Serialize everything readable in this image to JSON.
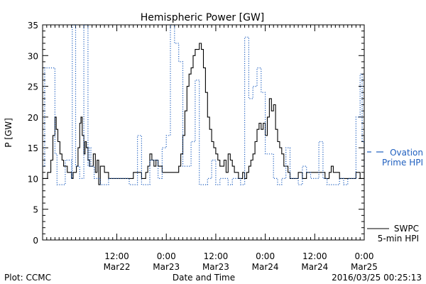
{
  "chart_data": {
    "type": "line",
    "title": "Hemispheric Power [GW]",
    "xlabel": "Date and Time",
    "ylabel": "P [GW]",
    "ylim": [
      0,
      35
    ],
    "xlim": [
      0,
      78
    ],
    "y_ticks": [
      0,
      5,
      10,
      15,
      20,
      25,
      30,
      35
    ],
    "x_ticks": [
      {
        "hours": 18,
        "time": "12:00",
        "date": "Mar22"
      },
      {
        "hours": 30,
        "time": "0:00",
        "date": "Mar23"
      },
      {
        "hours": 42,
        "time": "12:00",
        "date": "Mar23"
      },
      {
        "hours": 54,
        "time": "0:00",
        "date": "Mar24"
      },
      {
        "hours": 66,
        "time": "12:00",
        "date": "Mar24"
      },
      {
        "hours": 78,
        "time": "0:00",
        "date": "Mar25"
      }
    ],
    "series": [
      {
        "name": "SWPC 5-min HPI",
        "legend_lines": [
          "SWPC",
          "5-min HPI"
        ],
        "color": "#000000",
        "style": "solid",
        "x": [
          0,
          0.6,
          1.2,
          2.0,
          2.5,
          3.0,
          3.3,
          3.7,
          4.2,
          4.7,
          5.1,
          5.6,
          6.0,
          6.5,
          7.0,
          7.4,
          7.8,
          8.2,
          8.6,
          9.0,
          9.3,
          9.6,
          10.0,
          10.3,
          10.6,
          11.0,
          11.4,
          11.8,
          12.3,
          12.8,
          13.2,
          13.6,
          14.0,
          15.0,
          16.0,
          17.0,
          18.0,
          19.0,
          20.0,
          21.0,
          22.0,
          23.0,
          24.0,
          25.0,
          25.5,
          26.0,
          26.5,
          27.0,
          27.5,
          28.0,
          28.5,
          29.0,
          30.0,
          31.0,
          32.0,
          33.0,
          33.5,
          34.0,
          34.5,
          35.0,
          35.5,
          36.0,
          36.5,
          37.0,
          37.5,
          38.0,
          38.5,
          39.0,
          39.5,
          40.0,
          40.5,
          41.0,
          41.5,
          42.0,
          42.5,
          43.0,
          43.5,
          44.0,
          44.5,
          45.0,
          45.5,
          46.0,
          46.5,
          47.0,
          47.5,
          48.0,
          48.5,
          49.0,
          49.5,
          50.0,
          50.5,
          51.0,
          51.5,
          52.0,
          52.5,
          53.0,
          53.5,
          54.0,
          54.5,
          55.0,
          55.5,
          56.0,
          56.5,
          57.0,
          57.5,
          58.0,
          58.5,
          59.0,
          59.5,
          60.0,
          61.0,
          62.0,
          63.0,
          64.0,
          65.0,
          66.0,
          67.0,
          68.0,
          68.5,
          69.0,
          69.5,
          70.0,
          70.5,
          71.0,
          72.0,
          73.0,
          74.0,
          75.0,
          76.0,
          76.5,
          77.0,
          77.5,
          78.0
        ],
        "y": [
          10,
          10,
          11,
          13,
          17,
          20,
          18,
          16,
          14,
          13,
          12,
          12,
          11,
          11,
          10,
          11,
          11,
          12,
          15,
          19,
          20,
          17,
          14,
          16,
          15,
          13,
          12,
          12,
          14,
          11,
          13,
          9,
          12,
          11,
          10,
          10,
          10,
          10,
          10,
          10,
          11,
          11,
          10,
          11,
          12,
          14,
          13,
          12,
          13,
          12,
          12,
          11,
          11,
          11,
          11,
          12,
          14,
          17,
          21,
          25,
          27,
          28,
          30,
          31,
          31,
          32,
          31,
          28,
          24,
          20,
          18,
          16,
          15,
          14,
          13,
          12,
          12,
          13,
          11,
          14,
          13,
          12,
          11,
          11,
          10,
          10,
          11,
          10,
          11,
          12,
          13,
          14,
          16,
          18,
          19,
          18,
          19,
          17,
          20,
          23,
          21,
          22,
          18,
          16,
          15,
          14,
          12,
          12,
          11,
          10,
          10,
          11,
          10,
          11,
          11,
          11,
          11,
          11,
          10,
          10,
          11,
          12,
          11,
          11,
          10,
          10,
          10,
          10,
          11,
          11,
          10,
          10,
          17
        ]
      },
      {
        "name": "Ovation Prime HPI",
        "legend_lines": [
          "Ovation",
          "Prime HPI"
        ],
        "color": "#1f5fbf",
        "style": "dotted",
        "x": [
          0,
          0.5,
          1.0,
          3.0,
          3.5,
          4.0,
          5.5,
          6.0,
          7.0,
          7.2,
          7.4,
          8.0,
          8.5,
          9.0,
          10.0,
          10.5,
          11.0,
          11.3,
          11.7,
          12.0,
          12.5,
          13.0,
          14.0,
          16.0,
          18.0,
          20.0,
          21.0,
          22.0,
          23.0,
          24.0,
          25.0,
          26.0,
          27.0,
          28.0,
          29.0,
          30.0,
          31.0,
          32.0,
          33.0,
          34.0,
          35.0,
          36.0,
          37.0,
          38.0,
          39.0,
          40.0,
          41.0,
          42.0,
          43.0,
          44.0,
          45.0,
          46.0,
          47.0,
          48.0,
          49.0,
          50.0,
          51.0,
          52.0,
          53.0,
          54.0,
          55.0,
          56.0,
          57.0,
          58.0,
          59.0,
          60.0,
          61.0,
          62.0,
          63.0,
          64.0,
          65.0,
          66.0,
          67.0,
          68.0,
          69.0,
          70.0,
          71.0,
          72.0,
          73.0,
          74.0,
          75.0,
          76.0,
          77.0,
          77.5,
          78.0
        ],
        "y": [
          12,
          28,
          28,
          14,
          9,
          9,
          13,
          13,
          10,
          36,
          36,
          12,
          12,
          10,
          36,
          36,
          12,
          15,
          12,
          12,
          10,
          10,
          9,
          10,
          10,
          10,
          9,
          9,
          17,
          9,
          9,
          13,
          13,
          10,
          15,
          17,
          36,
          32,
          29,
          12,
          12,
          16,
          26,
          9,
          9,
          10,
          13,
          9,
          10,
          10,
          9,
          10,
          10,
          9,
          33,
          23,
          25,
          28,
          24,
          14,
          14,
          10,
          9,
          10,
          15,
          10,
          10,
          9,
          12,
          11,
          10,
          10,
          16,
          10,
          9,
          9,
          9,
          10,
          9,
          10,
          10,
          20,
          27,
          16,
          12
        ]
      }
    ],
    "footer": {
      "left": "Plot: CCMC",
      "right": "2016/03/25 00:25:13"
    }
  }
}
